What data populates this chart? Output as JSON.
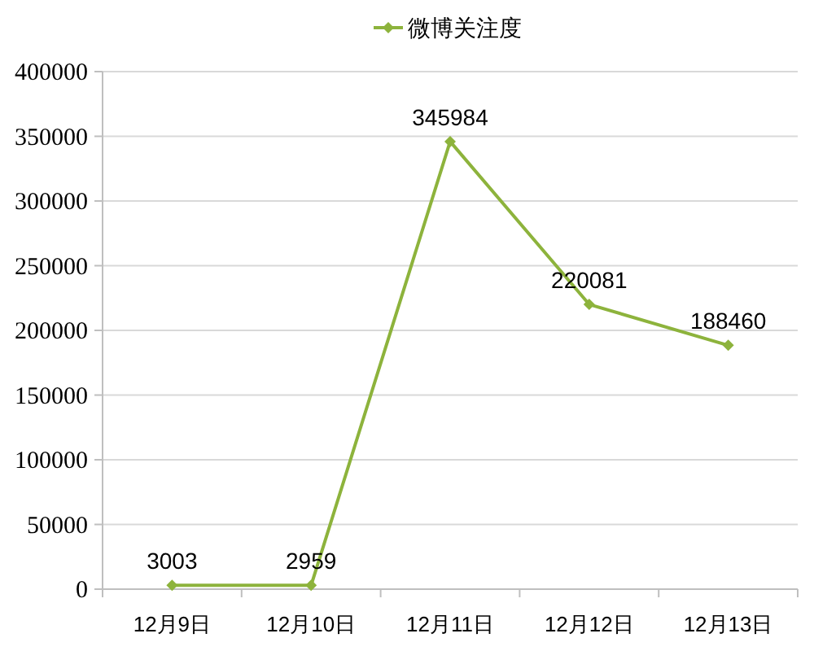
{
  "chart_data": {
    "type": "line",
    "categories": [
      "12月9日",
      "12月10日",
      "12月11日",
      "12月12日",
      "12月13日"
    ],
    "series": [
      {
        "name": "微博关注度",
        "color": "#8db33c",
        "values": [
          3003,
          2959,
          345984,
          220081,
          188460
        ]
      }
    ],
    "ylim": [
      0,
      400000
    ],
    "yticks": [
      0,
      50000,
      100000,
      150000,
      200000,
      250000,
      300000,
      350000,
      400000
    ],
    "grid": "y",
    "legend": "top",
    "marker": "diamond",
    "line_style": "solid",
    "data_labels": true
  }
}
